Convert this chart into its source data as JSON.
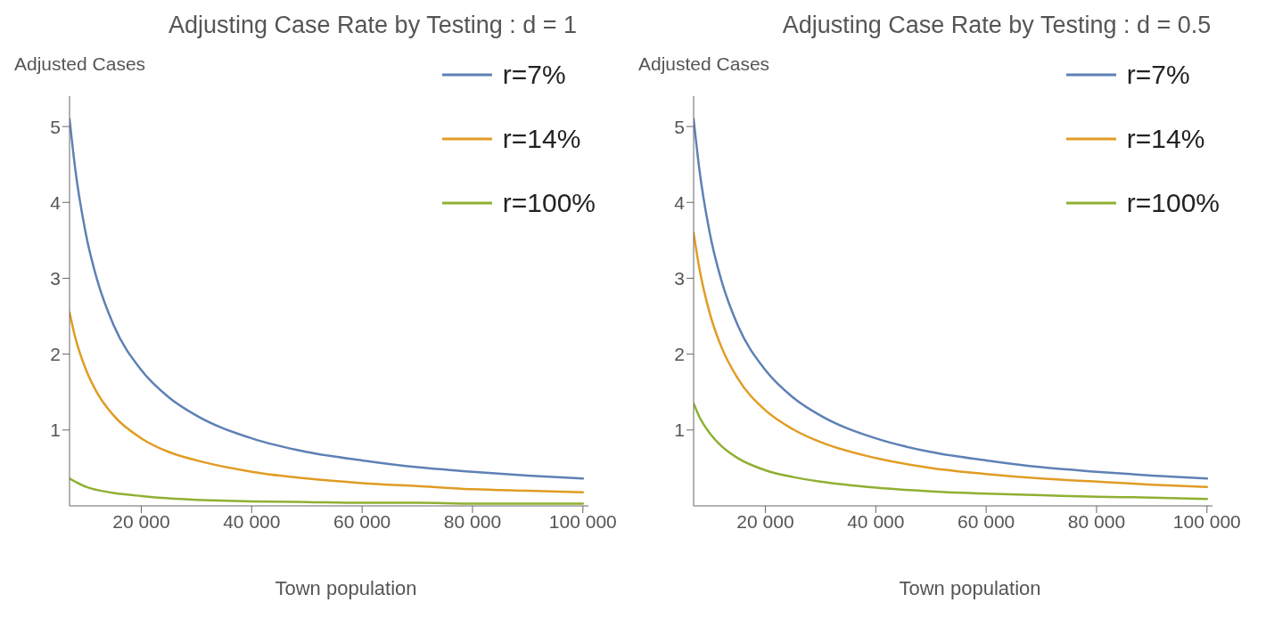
{
  "chart_data": [
    {
      "type": "line",
      "title": "Adjusting Case Rate by Testing : d = 1",
      "xlabel": "Town population",
      "ylabel": "Adjusted Cases",
      "x": [
        7000,
        8000,
        10000,
        12000,
        15000,
        20000,
        25000,
        30000,
        40000,
        50000,
        60000,
        70000,
        80000,
        90000,
        100000
      ],
      "series": [
        {
          "name": "r=7%",
          "color": "#5e81b5",
          "values": [
            5.1,
            4.46,
            3.57,
            2.98,
            2.38,
            1.79,
            1.43,
            1.19,
            0.89,
            0.71,
            0.6,
            0.51,
            0.45,
            0.4,
            0.36
          ]
        },
        {
          "name": "r=14%",
          "color": "#e19c24",
          "values": [
            2.55,
            2.23,
            1.79,
            1.49,
            1.19,
            0.89,
            0.71,
            0.6,
            0.45,
            0.36,
            0.3,
            0.26,
            0.22,
            0.2,
            0.18
          ]
        },
        {
          "name": "r=100%",
          "color": "#8fb032",
          "values": [
            0.36,
            0.32,
            0.25,
            0.21,
            0.17,
            0.13,
            0.1,
            0.08,
            0.06,
            0.05,
            0.04,
            0.04,
            0.03,
            0.03,
            0.03
          ]
        }
      ],
      "xlim": [
        7000,
        101000
      ],
      "xticks": [
        {
          "value": 20000,
          "label": "20 000"
        },
        {
          "value": 40000,
          "label": "40 000"
        },
        {
          "value": 60000,
          "label": "60 000"
        },
        {
          "value": 80000,
          "label": "80 000"
        },
        {
          "value": 100000,
          "label": "100 000"
        }
      ],
      "ylim": [
        0,
        5.4
      ],
      "yticks": [
        1,
        2,
        3,
        4,
        5
      ],
      "grid": false,
      "legend": "top right",
      "marker": "none",
      "line_style": "solid"
    },
    {
      "type": "line",
      "title": "Adjusting Case Rate by Testing : d = 0.5",
      "xlabel": "Town population",
      "ylabel": "Adjusted Cases",
      "x": [
        7000,
        8000,
        10000,
        12000,
        15000,
        20000,
        25000,
        30000,
        40000,
        50000,
        60000,
        70000,
        80000,
        90000,
        100000
      ],
      "series": [
        {
          "name": "r=7%",
          "color": "#5e81b5",
          "values": [
            5.1,
            4.46,
            3.57,
            2.98,
            2.38,
            1.79,
            1.43,
            1.19,
            0.89,
            0.71,
            0.6,
            0.51,
            0.45,
            0.4,
            0.36
          ]
        },
        {
          "name": "r=14%",
          "color": "#e19c24",
          "values": [
            3.6,
            3.15,
            2.52,
            2.1,
            1.68,
            1.26,
            1.01,
            0.84,
            0.63,
            0.5,
            0.42,
            0.36,
            0.32,
            0.28,
            0.25
          ]
        },
        {
          "name": "r=100%",
          "color": "#8fb032",
          "values": [
            1.35,
            1.18,
            0.95,
            0.79,
            0.63,
            0.47,
            0.38,
            0.32,
            0.24,
            0.19,
            0.16,
            0.14,
            0.12,
            0.11,
            0.09
          ]
        }
      ],
      "xlim": [
        7000,
        101000
      ],
      "xticks": [
        {
          "value": 20000,
          "label": "20 000"
        },
        {
          "value": 40000,
          "label": "40 000"
        },
        {
          "value": 60000,
          "label": "60 000"
        },
        {
          "value": 80000,
          "label": "80 000"
        },
        {
          "value": 100000,
          "label": "100 000"
        }
      ],
      "ylim": [
        0,
        5.4
      ],
      "yticks": [
        1,
        2,
        3,
        4,
        5
      ],
      "grid": false,
      "legend": "top right",
      "marker": "none",
      "line_style": "solid"
    }
  ]
}
